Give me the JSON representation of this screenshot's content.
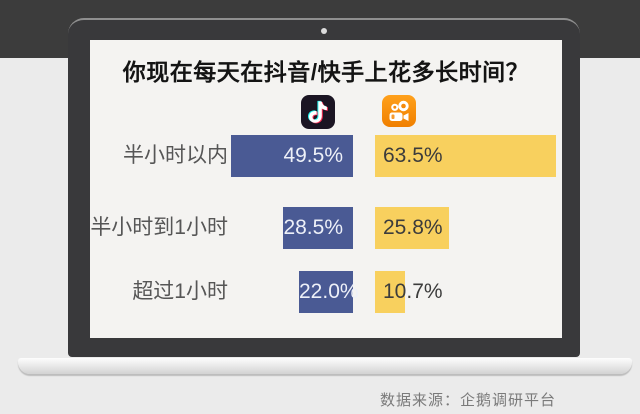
{
  "window": {
    "top_band_color": "#3c3c3c",
    "laptop_bezel_color": "#39393b",
    "screen_bg_color": "#f4f3f1"
  },
  "footer": {
    "source_note": "数据来源：企鹅调研平台"
  },
  "chart_data": {
    "type": "bar",
    "orientation": "horizontal",
    "title": "你现在每天在抖音/快手上花多长时间？",
    "categories": [
      "半小时以内",
      "半小时到1小时",
      "超过1小时"
    ],
    "series": [
      {
        "name": "抖音",
        "icon": "douyin-icon",
        "color": "#4a5a94",
        "text_color": "#edf0f8",
        "values": [
          49.5,
          28.5,
          22.0
        ],
        "value_labels": [
          "49.5%",
          "28.5%",
          "22.0%"
        ]
      },
      {
        "name": "快手",
        "icon": "kuaishou-icon",
        "color": "#f8d05e",
        "text_color": "#3c3c3c",
        "values": [
          63.5,
          25.8,
          10.7
        ],
        "value_labels": [
          "63.5%",
          "25.8%",
          "10.7%"
        ]
      }
    ],
    "legend_position": "top-icons",
    "grid": false,
    "value_format": "percent",
    "xlim": [
      0,
      70
    ]
  }
}
